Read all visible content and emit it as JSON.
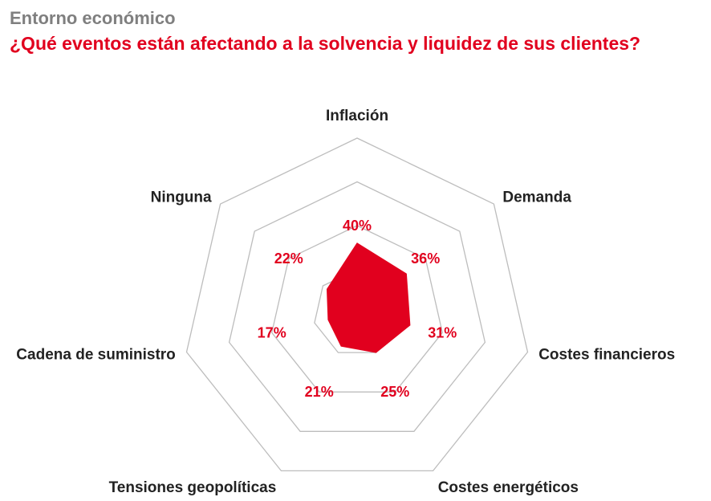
{
  "header": {
    "subtitle": "Entorno económico",
    "title": "¿Qué eventos están afectando a la solvencia y liquidez de sus clientes?"
  },
  "colors": {
    "accent": "#e1001e",
    "subtitle": "#7f7f7f",
    "grid": "#bdbdbd",
    "text": "#222222"
  },
  "chart_data": {
    "type": "radar",
    "categories": [
      "Inflación",
      "Demanda",
      "Costes financieros",
      "Costes energéticos",
      "Tensiones geopolíticas",
      "Cadena de suministro",
      "Ninguna"
    ],
    "values": [
      40,
      36,
      31,
      25,
      21,
      17,
      22
    ],
    "value_labels": [
      "40%",
      "36%",
      "31%",
      "25%",
      "21%",
      "17%",
      "22%"
    ],
    "unit": "%",
    "rlim": [
      0,
      100
    ],
    "grid_rings": 4,
    "grid": true,
    "legend": "none"
  }
}
